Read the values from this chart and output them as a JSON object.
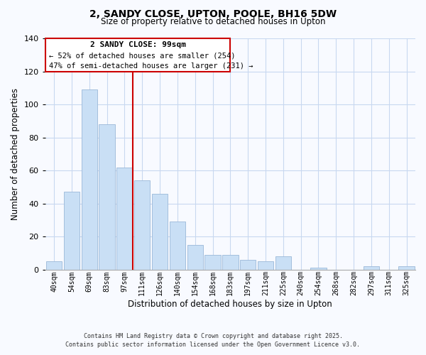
{
  "title": "2, SANDY CLOSE, UPTON, POOLE, BH16 5DW",
  "subtitle": "Size of property relative to detached houses in Upton",
  "xlabel": "Distribution of detached houses by size in Upton",
  "ylabel": "Number of detached properties",
  "bar_labels": [
    "40sqm",
    "54sqm",
    "69sqm",
    "83sqm",
    "97sqm",
    "111sqm",
    "126sqm",
    "140sqm",
    "154sqm",
    "168sqm",
    "183sqm",
    "197sqm",
    "211sqm",
    "225sqm",
    "240sqm",
    "254sqm",
    "268sqm",
    "282sqm",
    "297sqm",
    "311sqm",
    "325sqm"
  ],
  "bar_values": [
    5,
    47,
    109,
    88,
    62,
    54,
    46,
    29,
    15,
    9,
    9,
    6,
    5,
    8,
    0,
    1,
    0,
    0,
    2,
    0,
    2
  ],
  "bar_color": "#c9dff5",
  "bar_edge_color": "#9ab8d8",
  "vline_x_index": 4,
  "vline_color": "#cc0000",
  "ylim": [
    0,
    140
  ],
  "yticks": [
    0,
    20,
    40,
    60,
    80,
    100,
    120,
    140
  ],
  "annotation_title": "2 SANDY CLOSE: 99sqm",
  "annotation_line1": "← 52% of detached houses are smaller (254)",
  "annotation_line2": "47% of semi-detached houses are larger (231) →",
  "footer1": "Contains HM Land Registry data © Crown copyright and database right 2025.",
  "footer2": "Contains public sector information licensed under the Open Government Licence v3.0.",
  "background_color": "#f8faff",
  "grid_color": "#c8d8f0"
}
